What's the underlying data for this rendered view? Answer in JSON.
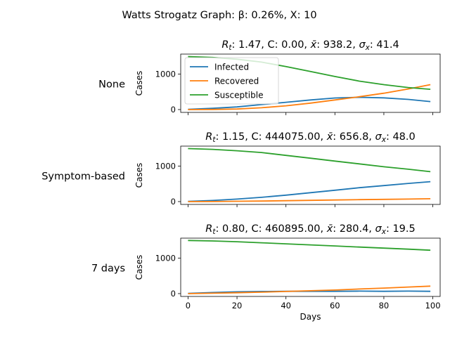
{
  "figure": {
    "suptitle": "Watts Strogatz Graph: β: 0.26%, X: 10"
  },
  "colors": {
    "infected": "#1f77b4",
    "recovered": "#ff7f0e",
    "susceptible": "#2ca02c"
  },
  "chart_data": [
    {
      "type": "line",
      "row_label": "None",
      "title": {
        "rt": "1.47",
        "c": "0.00",
        "xbar": "938.2",
        "sigma": "41.4"
      },
      "xlabel": "",
      "ylabel": "Cases",
      "xlim": [
        -3,
        103
      ],
      "ylim": [
        -80,
        1560
      ],
      "xticks": [
        0,
        20,
        40,
        60,
        80,
        100
      ],
      "xtick_labels_visible": false,
      "yticks": [
        0,
        1000
      ],
      "legend": {
        "position": "upper-left",
        "entries": [
          "Infected",
          "Recovered",
          "Susceptible"
        ]
      },
      "x": [
        0,
        10,
        20,
        30,
        40,
        50,
        60,
        70,
        80,
        90,
        99
      ],
      "series": [
        {
          "name": "Infected",
          "color_key": "infected",
          "values": [
            5,
            35,
            75,
            140,
            205,
            270,
            325,
            345,
            330,
            285,
            225
          ]
        },
        {
          "name": "Recovered",
          "color_key": "recovered",
          "values": [
            0,
            3,
            15,
            50,
            105,
            180,
            270,
            360,
            460,
            580,
            700
          ]
        },
        {
          "name": "Susceptible",
          "color_key": "susceptible",
          "values": [
            1490,
            1465,
            1415,
            1335,
            1210,
            1070,
            930,
            800,
            700,
            620,
            570
          ]
        }
      ]
    },
    {
      "type": "line",
      "row_label": "Symptom-based",
      "title": {
        "rt": "1.15",
        "c": "444075.00",
        "xbar": "656.8",
        "sigma": "48.0"
      },
      "xlabel": "",
      "ylabel": "Cases",
      "xlim": [
        -3,
        103
      ],
      "ylim": [
        -80,
        1560
      ],
      "xticks": [
        0,
        20,
        40,
        60,
        80,
        100
      ],
      "xtick_labels_visible": false,
      "yticks": [
        0,
        1000
      ],
      "x": [
        0,
        10,
        20,
        30,
        40,
        50,
        60,
        70,
        80,
        90,
        99
      ],
      "series": [
        {
          "name": "Infected",
          "color_key": "infected",
          "values": [
            5,
            30,
            70,
            120,
            180,
            250,
            320,
            390,
            450,
            510,
            560
          ]
        },
        {
          "name": "Recovered",
          "color_key": "recovered",
          "values": [
            0,
            2,
            8,
            15,
            25,
            35,
            45,
            55,
            62,
            70,
            80
          ]
        },
        {
          "name": "Susceptible",
          "color_key": "susceptible",
          "values": [
            1490,
            1470,
            1430,
            1380,
            1300,
            1220,
            1140,
            1060,
            980,
            910,
            840
          ]
        }
      ]
    },
    {
      "type": "line",
      "row_label": "7 days",
      "title": {
        "rt": "0.80",
        "c": "460895.00",
        "xbar": "280.4",
        "sigma": "19.5"
      },
      "xlabel": "Days",
      "ylabel": "Cases",
      "xlim": [
        -3,
        103
      ],
      "ylim": [
        -80,
        1560
      ],
      "xticks": [
        0,
        20,
        40,
        60,
        80,
        100
      ],
      "xtick_labels_visible": true,
      "yticks": [
        0,
        1000
      ],
      "x": [
        0,
        10,
        20,
        30,
        40,
        50,
        60,
        70,
        80,
        90,
        99
      ],
      "series": [
        {
          "name": "Infected",
          "color_key": "infected",
          "values": [
            5,
            30,
            50,
            60,
            65,
            65,
            65,
            70,
            65,
            70,
            65
          ]
        },
        {
          "name": "Recovered",
          "color_key": "recovered",
          "values": [
            0,
            10,
            25,
            40,
            60,
            80,
            100,
            130,
            155,
            185,
            210
          ]
        },
        {
          "name": "Susceptible",
          "color_key": "susceptible",
          "values": [
            1495,
            1480,
            1460,
            1430,
            1400,
            1370,
            1340,
            1310,
            1280,
            1250,
            1220
          ]
        }
      ]
    }
  ]
}
